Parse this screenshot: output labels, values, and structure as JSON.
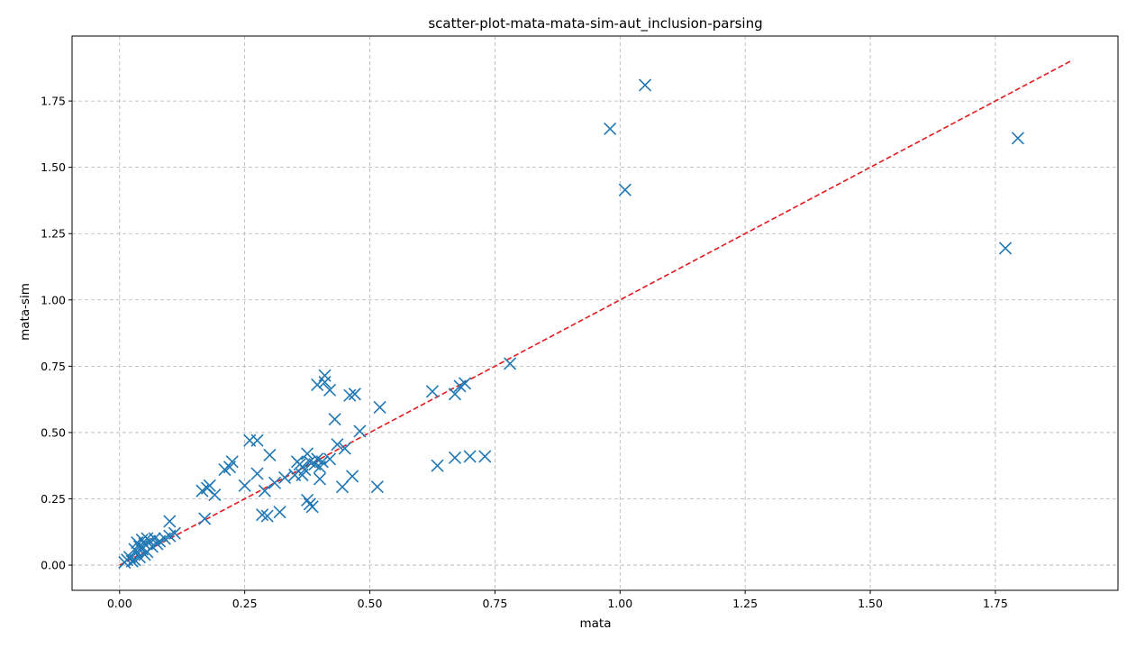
{
  "chart_data": {
    "type": "scatter",
    "title": "scatter-plot-mata-mata-sim-aut_inclusion-parsing",
    "xlabel": "mata",
    "ylabel": "mata-sim",
    "xlim": [
      -0.095,
      1.995
    ],
    "ylim": [
      -0.095,
      1.995
    ],
    "xticks": [
      0.0,
      0.25,
      0.5,
      0.75,
      1.0,
      1.25,
      1.5,
      1.75
    ],
    "yticks": [
      0.0,
      0.25,
      0.5,
      0.75,
      1.0,
      1.25,
      1.5,
      1.75
    ],
    "xtick_labels": [
      "0.00",
      "0.25",
      "0.50",
      "0.75",
      "1.00",
      "1.25",
      "1.50",
      "1.75"
    ],
    "ytick_labels": [
      "0.00",
      "0.25",
      "0.50",
      "0.75",
      "1.00",
      "1.25",
      "1.50",
      "1.75"
    ],
    "grid": true,
    "colors": {
      "marker": "#1f77b4",
      "reference_line": "#e41a1c",
      "grid": "#b0b0b0"
    },
    "marker": "x",
    "reference_line": {
      "style": "dashed",
      "x": [
        0.0,
        1.9
      ],
      "y": [
        0.0,
        1.9
      ]
    },
    "points": [
      [
        0.01,
        0.01
      ],
      [
        0.015,
        0.02
      ],
      [
        0.02,
        0.03
      ],
      [
        0.025,
        0.015
      ],
      [
        0.03,
        0.02
      ],
      [
        0.035,
        0.05
      ],
      [
        0.04,
        0.03
      ],
      [
        0.04,
        0.07
      ],
      [
        0.045,
        0.06
      ],
      [
        0.05,
        0.04
      ],
      [
        0.05,
        0.08
      ],
      [
        0.055,
        0.05
      ],
      [
        0.06,
        0.09
      ],
      [
        0.065,
        0.07
      ],
      [
        0.07,
        0.1
      ],
      [
        0.075,
        0.08
      ],
      [
        0.08,
        0.09
      ],
      [
        0.09,
        0.1
      ],
      [
        0.1,
        0.11
      ],
      [
        0.11,
        0.12
      ],
      [
        0.1,
        0.165
      ],
      [
        0.035,
        0.085
      ],
      [
        0.045,
        0.095
      ],
      [
        0.055,
        0.1
      ],
      [
        0.03,
        0.06
      ],
      [
        0.165,
        0.28
      ],
      [
        0.17,
        0.175
      ],
      [
        0.175,
        0.29
      ],
      [
        0.18,
        0.3
      ],
      [
        0.19,
        0.265
      ],
      [
        0.21,
        0.36
      ],
      [
        0.22,
        0.37
      ],
      [
        0.225,
        0.39
      ],
      [
        0.25,
        0.3
      ],
      [
        0.26,
        0.47
      ],
      [
        0.275,
        0.47
      ],
      [
        0.275,
        0.345
      ],
      [
        0.285,
        0.19
      ],
      [
        0.29,
        0.28
      ],
      [
        0.295,
        0.185
      ],
      [
        0.3,
        0.415
      ],
      [
        0.31,
        0.31
      ],
      [
        0.32,
        0.2
      ],
      [
        0.33,
        0.33
      ],
      [
        0.35,
        0.34
      ],
      [
        0.36,
        0.38
      ],
      [
        0.365,
        0.37
      ],
      [
        0.37,
        0.36
      ],
      [
        0.375,
        0.42
      ],
      [
        0.38,
        0.39
      ],
      [
        0.38,
        0.23
      ],
      [
        0.385,
        0.22
      ],
      [
        0.39,
        0.38
      ],
      [
        0.395,
        0.4
      ],
      [
        0.395,
        0.68
      ],
      [
        0.4,
        0.37
      ],
      [
        0.405,
        0.39
      ],
      [
        0.41,
        0.69
      ],
      [
        0.41,
        0.715
      ],
      [
        0.42,
        0.66
      ],
      [
        0.42,
        0.4
      ],
      [
        0.43,
        0.55
      ],
      [
        0.435,
        0.455
      ],
      [
        0.445,
        0.295
      ],
      [
        0.45,
        0.44
      ],
      [
        0.46,
        0.64
      ],
      [
        0.465,
        0.335
      ],
      [
        0.47,
        0.645
      ],
      [
        0.48,
        0.505
      ],
      [
        0.4,
        0.325
      ],
      [
        0.355,
        0.39
      ],
      [
        0.365,
        0.34
      ],
      [
        0.375,
        0.245
      ],
      [
        0.515,
        0.295
      ],
      [
        0.52,
        0.595
      ],
      [
        0.625,
        0.655
      ],
      [
        0.635,
        0.375
      ],
      [
        0.67,
        0.405
      ],
      [
        0.67,
        0.645
      ],
      [
        0.68,
        0.675
      ],
      [
        0.69,
        0.685
      ],
      [
        0.7,
        0.41
      ],
      [
        0.73,
        0.41
      ],
      [
        0.78,
        0.76
      ],
      [
        0.98,
        1.645
      ],
      [
        1.01,
        1.415
      ],
      [
        1.05,
        1.81
      ],
      [
        1.77,
        1.195
      ],
      [
        1.795,
        1.61
      ]
    ]
  }
}
